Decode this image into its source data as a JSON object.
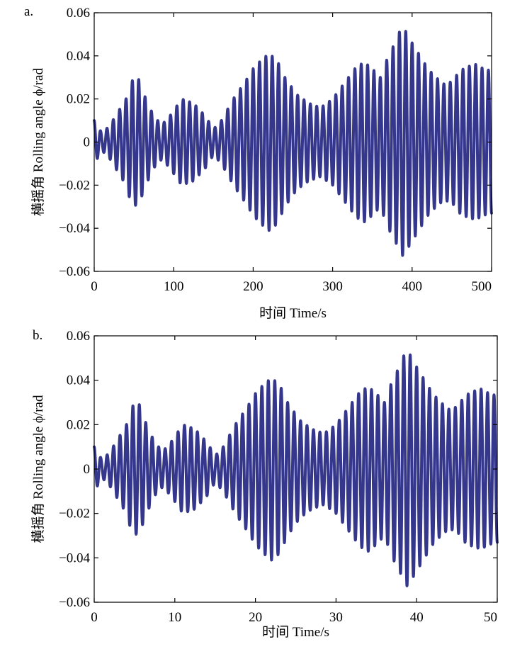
{
  "chart_data": [
    {
      "type": "line",
      "panel_label": "a.",
      "xlabel": "时间 Time/s",
      "ylabel": "横摇角 Rolling angle ϕ/rad",
      "xlim": [
        0,
        500
      ],
      "ylim": [
        -0.06,
        0.06
      ],
      "xticks": [
        "0",
        "100",
        "200",
        "300",
        "400",
        "500"
      ],
      "yticks": [
        "0.06",
        "0.04",
        "0.02",
        "0",
        "−0.02",
        "−0.04",
        "−0.06"
      ],
      "series": [
        {
          "name": "Rolling angle",
          "color": "#35378c",
          "period": 8.0,
          "x": [
            0,
            10,
            20,
            30,
            40,
            46,
            55,
            65,
            75,
            85,
            95,
            110,
            125,
            140,
            150,
            160,
            175,
            190,
            200,
            210,
            220,
            230,
            240,
            255,
            270,
            285,
            300,
            310,
            320,
            330,
            340,
            350,
            360,
            370,
            380,
            385,
            390,
            395,
            400,
            410,
            420,
            430,
            440,
            450,
            460,
            470,
            480,
            490,
            500
          ],
          "envelope": [
            0.01,
            0.004,
            0.008,
            0.014,
            0.02,
            0.028,
            0.03,
            0.02,
            0.012,
            0.008,
            0.012,
            0.02,
            0.018,
            0.012,
            0.006,
            0.01,
            0.02,
            0.028,
            0.034,
            0.038,
            0.041,
            0.038,
            0.03,
            0.022,
            0.018,
            0.016,
            0.02,
            0.025,
            0.03,
            0.035,
            0.037,
            0.034,
            0.03,
            0.04,
            0.047,
            0.052,
            0.053,
            0.049,
            0.046,
            0.04,
            0.034,
            0.03,
            0.027,
            0.028,
            0.033,
            0.035,
            0.036,
            0.034,
            0.033
          ]
        }
      ]
    },
    {
      "type": "line",
      "panel_label": "b.",
      "xlabel": "时间 Time/s",
      "ylabel": "横摇角 Rolling angle ϕ/rad",
      "xlim": [
        0,
        50
      ],
      "ylim": [
        -0.06,
        0.06
      ],
      "xticks": [
        "0",
        "10",
        "20",
        "30",
        "40",
        "50"
      ],
      "yticks": [
        "0.06",
        "0.04",
        "0.02",
        "0",
        "−0.02",
        "−0.04",
        "−0.06"
      ],
      "series": [
        {
          "name": "Rolling angle",
          "color": "#35378c",
          "period": 0.8,
          "x": [
            0,
            1,
            2,
            3,
            4,
            4.6,
            5.5,
            6.5,
            7.5,
            8.5,
            9.5,
            11,
            12.5,
            14,
            15,
            16,
            17.5,
            19,
            20,
            21,
            22,
            23,
            24,
            25.5,
            27,
            28.5,
            30,
            31,
            32,
            33,
            34,
            35,
            36,
            37,
            38,
            38.5,
            39,
            39.5,
            40,
            41,
            42,
            43,
            44,
            45,
            46,
            47,
            48,
            49,
            50
          ],
          "envelope": [
            0.01,
            0.004,
            0.008,
            0.014,
            0.02,
            0.028,
            0.03,
            0.02,
            0.012,
            0.008,
            0.012,
            0.02,
            0.018,
            0.012,
            0.006,
            0.01,
            0.02,
            0.028,
            0.034,
            0.038,
            0.041,
            0.038,
            0.03,
            0.022,
            0.018,
            0.016,
            0.02,
            0.025,
            0.03,
            0.035,
            0.037,
            0.034,
            0.03,
            0.04,
            0.047,
            0.052,
            0.053,
            0.049,
            0.046,
            0.04,
            0.034,
            0.03,
            0.027,
            0.028,
            0.033,
            0.035,
            0.036,
            0.034,
            0.033
          ]
        }
      ]
    }
  ]
}
